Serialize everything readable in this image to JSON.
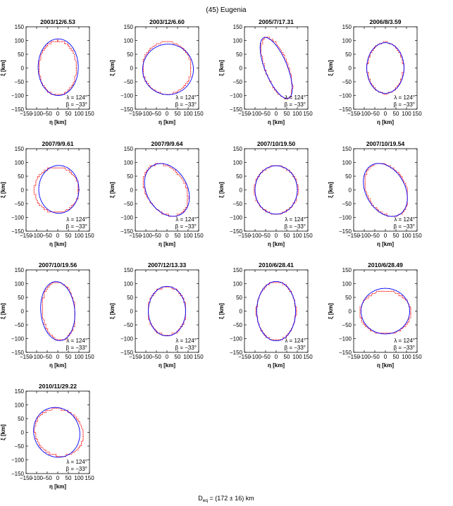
{
  "figure": {
    "title": "(45) Eugenia",
    "footer": "D",
    "footer_sub": "eq",
    "footer_value": " = (172 ± 16) km",
    "pole_lambda": "λ = 124°",
    "pole_beta": "β = −33°",
    "xlabel_symbol": "η",
    "xlabel_unit": "[km]",
    "ylabel_symbol": "ξ",
    "ylabel_unit": "[km]"
  },
  "colors": {
    "model_contour": "#0000ff",
    "ao_contour": "#ff0000",
    "axes": "#000000"
  },
  "chart_data": {
    "type": "scatter",
    "description": "Adaptive-optics silhouettes (red dotted) vs shape-model projections (blue line) for 13 epochs",
    "xlim": [
      -150,
      150
    ],
    "ylim": [
      -150,
      150
    ],
    "xticks": [
      -150,
      -100,
      -50,
      0,
      50,
      100,
      150
    ],
    "yticks": [
      -150,
      -100,
      -50,
      0,
      50,
      100,
      150
    ],
    "xtick_labels": [
      "−150",
      "−100",
      "−50",
      "0",
      "50",
      "100",
      "150"
    ],
    "ytick_labels": [
      "−150",
      "−100",
      "−50",
      "0",
      "50",
      "100",
      "150"
    ],
    "units": "km",
    "panels": [
      {
        "label": "2003/12/6.53",
        "model": {
          "cx": 2,
          "cy": 3,
          "a": 95,
          "b": 103,
          "rot": 0
        },
        "ao": {
          "cx": 0,
          "cy": 0,
          "a": 88,
          "b": 100,
          "rot": 0
        }
      },
      {
        "label": "2003/12/6.60",
        "model": {
          "cx": 5,
          "cy": -5,
          "a": 120,
          "b": 92,
          "rot": 0
        },
        "ao": {
          "cx": 0,
          "cy": 0,
          "a": 115,
          "b": 95,
          "rot": 0
        }
      },
      {
        "label": "2005/7/17.31",
        "model": {
          "cx": 0,
          "cy": 0,
          "a": 50,
          "b": 125,
          "rot": 30
        },
        "ao": {
          "cx": 3,
          "cy": 0,
          "a": 52,
          "b": 122,
          "rot": 28
        }
      },
      {
        "label": "2006/8/3.59",
        "model": {
          "cx": 0,
          "cy": 0,
          "a": 88,
          "b": 92,
          "rot": 0
        },
        "ao": {
          "cx": 0,
          "cy": 0,
          "a": 85,
          "b": 93,
          "rot": 0
        }
      },
      {
        "label": "2007/9/9.61",
        "model": {
          "cx": 5,
          "cy": 2,
          "a": 95,
          "b": 87,
          "rot": 0
        },
        "ao": {
          "cx": -5,
          "cy": 0,
          "a": 105,
          "b": 83,
          "rot": 0
        }
      },
      {
        "label": "2007/9/9.64",
        "model": {
          "cx": 0,
          "cy": 0,
          "a": 115,
          "b": 85,
          "rot": -35
        },
        "ao": {
          "cx": -5,
          "cy": 0,
          "a": 115,
          "b": 82,
          "rot": -35
        }
      },
      {
        "label": "2007/10/19.50",
        "model": {
          "cx": 0,
          "cy": 0,
          "a": 100,
          "b": 88,
          "rot": 0
        },
        "ao": {
          "cx": 0,
          "cy": 0,
          "a": 103,
          "b": 87,
          "rot": 0
        }
      },
      {
        "label": "2007/10/19.54",
        "model": {
          "cx": 0,
          "cy": 0,
          "a": 115,
          "b": 83,
          "rot": -38
        },
        "ao": {
          "cx": 5,
          "cy": 0,
          "a": 113,
          "b": 83,
          "rot": -38
        }
      },
      {
        "label": "2007/10/19.56",
        "model": {
          "cx": 0,
          "cy": 0,
          "a": 80,
          "b": 108,
          "rot": 10
        },
        "ao": {
          "cx": 5,
          "cy": 0,
          "a": 78,
          "b": 106,
          "rot": 10
        }
      },
      {
        "label": "2007/12/13.33",
        "model": {
          "cx": 0,
          "cy": 0,
          "a": 88,
          "b": 90,
          "rot": 0
        },
        "ao": {
          "cx": 0,
          "cy": 0,
          "a": 90,
          "b": 88,
          "rot": 0
        }
      },
      {
        "label": "2010/6/28.41",
        "model": {
          "cx": 0,
          "cy": 0,
          "a": 92,
          "b": 108,
          "rot": 0
        },
        "ao": {
          "cx": 0,
          "cy": 0,
          "a": 93,
          "b": 107,
          "rot": 0
        }
      },
      {
        "label": "2010/6/28.49",
        "model": {
          "cx": 0,
          "cy": 0,
          "a": 115,
          "b": 83,
          "rot": 0
        },
        "ao": {
          "cx": 0,
          "cy": -5,
          "a": 120,
          "b": 78,
          "rot": 0
        }
      },
      {
        "label": "2010/11/29.22",
        "model": {
          "cx": -5,
          "cy": 0,
          "a": 110,
          "b": 90,
          "rot": -10
        },
        "ao": {
          "cx": 5,
          "cy": 0,
          "a": 115,
          "b": 85,
          "rot": -10
        }
      }
    ]
  }
}
